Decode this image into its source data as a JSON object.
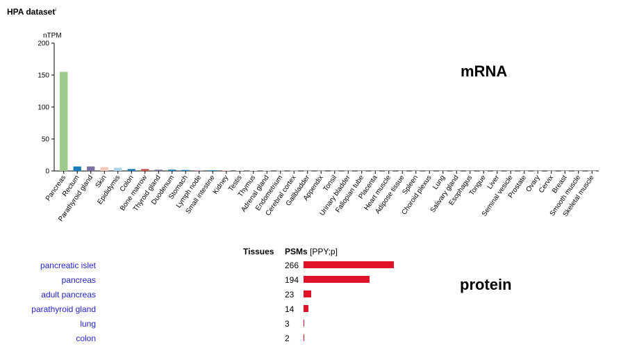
{
  "header": {
    "title": "HPA dataset",
    "info": "i"
  },
  "labels": {
    "mrna": "mRNA",
    "protein": "protein"
  },
  "chart_data": [
    {
      "type": "bar",
      "ylabel": "nTPM",
      "ylim": [
        0,
        200
      ],
      "yticks": [
        0,
        50,
        100,
        150,
        200
      ],
      "categories": [
        "Pancreas",
        "Rectum",
        "Parathyroid gland",
        "Skin",
        "Epididymis",
        "Colon",
        "Bone marrow",
        "Thyroid gland",
        "Duodenum",
        "Stomach",
        "Lymph node",
        "Small intestine",
        "Kidney",
        "Testis",
        "Thymus",
        "Adrenal gland",
        "Endometrium",
        "Cerebral cortex",
        "Gallbladder",
        "Appendix",
        "Tonsil",
        "Urinary bladder",
        "Fallopian tube",
        "Placenta",
        "Heart muscle",
        "Adipose tissue",
        "Spleen",
        "Choroid plexus",
        "Lung",
        "Salivary gland",
        "Esophagus",
        "Tongue",
        "Liver",
        "Seminal vesicle",
        "Prostate",
        "Ovary",
        "Cervix",
        "Breast",
        "Smooth muscle",
        "Skeletal muscle"
      ],
      "values": [
        155,
        7,
        7,
        6,
        5,
        3,
        3,
        2,
        2,
        1.5,
        1.2,
        1,
        1,
        0.8,
        0.6,
        0.5,
        0.4,
        0.3,
        0.2,
        0.2,
        0.2,
        0.2,
        0.1,
        0.1,
        0.1,
        0.1,
        0.1,
        0.1,
        0.1,
        0.1,
        0.1,
        0.1,
        0.1,
        0.1,
        0.1,
        0.1,
        0.1,
        0.1,
        0.1,
        0.1
      ],
      "colors": [
        "#9dca8c",
        "#1a7dba",
        "#7b6fa0",
        "#f3c9b8",
        "#a8d3e6",
        "#1a7dba",
        "#c9544e",
        "#7b6fa0",
        "#1a7dba",
        "#1a7dba",
        "#c9a0c4",
        "#1a7dba",
        "#f3c9b8",
        "#cccccc",
        "#cccccc",
        "#cccccc",
        "#cccccc",
        "#cccccc",
        "#cccccc",
        "#cccccc",
        "#cccccc",
        "#cccccc",
        "#cccccc",
        "#cccccc",
        "#cccccc",
        "#cccccc",
        "#cccccc",
        "#cccccc",
        "#cccccc",
        "#cccccc",
        "#cccccc",
        "#cccccc",
        "#cccccc",
        "#cccccc",
        "#cccccc",
        "#cccccc",
        "#cccccc",
        "#cccccc",
        "#cccccc",
        "#cccccc"
      ]
    },
    {
      "type": "bar",
      "orientation": "horizontal",
      "header": {
        "tissues": "Tissues",
        "psms": "PSMs",
        "psms_unit": "[PPY;p]"
      },
      "rows": [
        {
          "tissue": "pancreatic islet",
          "value": 266
        },
        {
          "tissue": "pancreas",
          "value": 194
        },
        {
          "tissue": "adult pancreas",
          "value": 23
        },
        {
          "tissue": "parathyroid gland",
          "value": 14
        },
        {
          "tissue": "lung",
          "value": 3
        },
        {
          "tissue": "colon",
          "value": 2
        }
      ],
      "bar_color": "#e0122a",
      "max_value": 266
    }
  ]
}
